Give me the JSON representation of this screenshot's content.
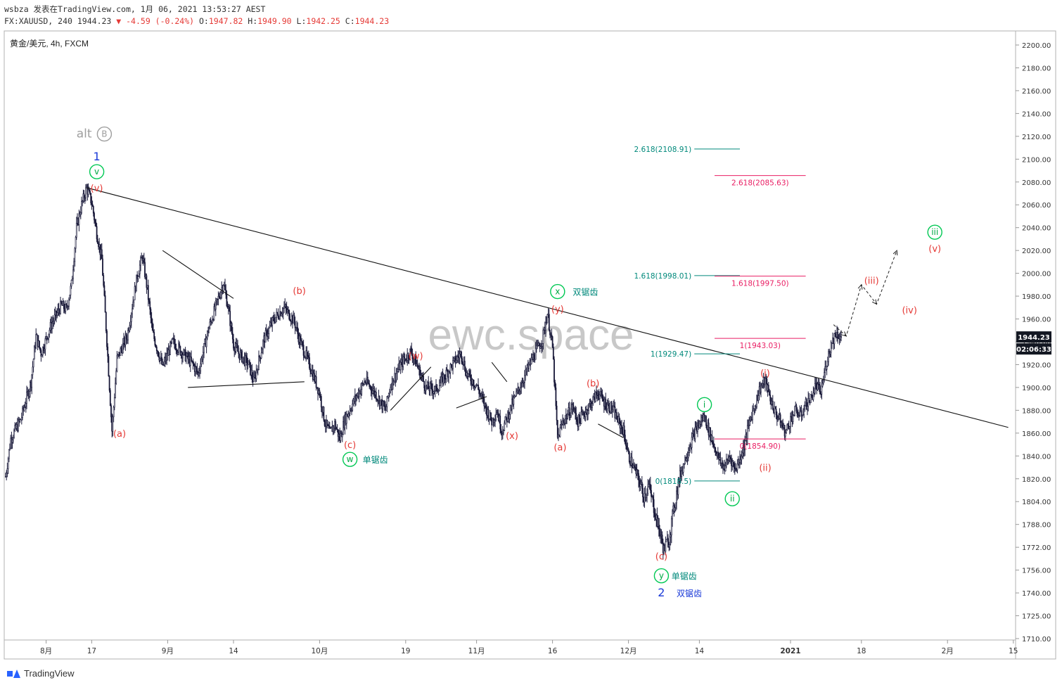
{
  "header": {
    "line1": "wsbza 发表在TradingView.com, 1月 06, 2021 13:53:27 AEST",
    "line2_symbol": "FX:XAUUSD, 240",
    "line2_last": "1944.23",
    "line2_change": "▼ -4.59 (-0.24%)",
    "o_label": "O:",
    "o_value": "1947.82",
    "h_label": "H:",
    "h_value": "1949.90",
    "l_label": "L:",
    "l_value": "1942.25",
    "c_label": "C:",
    "c_value": "1944.23"
  },
  "brand": "TradingView",
  "chart_data": {
    "type": "candlestick",
    "title": "黄金/美元, 4h, FXCM",
    "watermark": "ewc.space",
    "price_label": "1944.23",
    "countdown_label": "02:06:33",
    "y_ticks": [
      2200,
      2180,
      2160,
      2140,
      2120,
      2100,
      2080,
      2060,
      2040,
      2020,
      2000,
      1980,
      1960,
      1940,
      1920,
      1900,
      1880,
      1860,
      1840,
      1820,
      1804,
      1788,
      1772,
      1756,
      1740,
      1725,
      1710
    ],
    "y_tick_labels": [
      "2200.00",
      "2180.00",
      "2160.00",
      "2140.00",
      "2120.00",
      "2100.00",
      "2080.00",
      "2060.00",
      "2040.00",
      "2020.00",
      "2000.00",
      "1980.00",
      "1960.00",
      "1940.00",
      "1920.00",
      "1900.00",
      "1880.00",
      "1860.00",
      "1840.00",
      "1820.00",
      "1804.00",
      "1788.00",
      "1772.00",
      "1756.00",
      "1740.00",
      "1725.00",
      "1710.00"
    ],
    "x_ticks": [
      {
        "label": "8月",
        "day": 8
      },
      {
        "label": "17",
        "day": 17
      },
      {
        "label": "9月",
        "day": 32
      },
      {
        "label": "14",
        "day": 45
      },
      {
        "label": "10月",
        "day": 62
      },
      {
        "label": "19",
        "day": 79
      },
      {
        "label": "11月",
        "day": 93
      },
      {
        "label": "16",
        "day": 108
      },
      {
        "label": "12月",
        "day": 123
      },
      {
        "label": "14",
        "day": 137
      },
      {
        "label": "2021",
        "day": 155
      },
      {
        "label": "18",
        "day": 169
      },
      {
        "label": "2月",
        "day": 186
      },
      {
        "label": "15",
        "day": 199
      }
    ],
    "price_path": [
      [
        0,
        1822
      ],
      [
        1,
        1855
      ],
      [
        3,
        1872
      ],
      [
        5,
        1905
      ],
      [
        6,
        1945
      ],
      [
        7,
        1930
      ],
      [
        9,
        1955
      ],
      [
        11,
        1972
      ],
      [
        12,
        1968
      ],
      [
        13,
        1990
      ],
      [
        14,
        2040
      ],
      [
        15,
        2060
      ],
      [
        16,
        2075
      ],
      [
        17,
        2062
      ],
      [
        18,
        2035
      ],
      [
        19,
        2012
      ],
      [
        20,
        1940
      ],
      [
        21,
        1862
      ],
      [
        22,
        1925
      ],
      [
        24,
        1945
      ],
      [
        26,
        1998
      ],
      [
        27,
        2015
      ],
      [
        28,
        1985
      ],
      [
        29,
        1948
      ],
      [
        31,
        1918
      ],
      [
        33,
        1940
      ],
      [
        35,
        1930
      ],
      [
        37,
        1920
      ],
      [
        38,
        1912
      ],
      [
        40,
        1950
      ],
      [
        42,
        1978
      ],
      [
        43,
        1992
      ],
      [
        44,
        1968
      ],
      [
        45,
        1938
      ],
      [
        46,
        1930
      ],
      [
        48,
        1920
      ],
      [
        49,
        1905
      ],
      [
        51,
        1942
      ],
      [
        53,
        1960
      ],
      [
        55,
        1970
      ],
      [
        57,
        1958
      ],
      [
        58,
        1942
      ],
      [
        60,
        1920
      ],
      [
        62,
        1895
      ],
      [
        63,
        1870
      ],
      [
        64,
        1860
      ],
      [
        65,
        1868
      ],
      [
        66,
        1855
      ],
      [
        67,
        1872
      ],
      [
        69,
        1890
      ],
      [
        71,
        1906
      ],
      [
        73,
        1895
      ],
      [
        75,
        1880
      ],
      [
        76,
        1902
      ],
      [
        78,
        1920
      ],
      [
        80,
        1932
      ],
      [
        81,
        1922
      ],
      [
        83,
        1900
      ],
      [
        85,
        1898
      ],
      [
        87,
        1912
      ],
      [
        89,
        1925
      ],
      [
        90,
        1930
      ],
      [
        91,
        1912
      ],
      [
        93,
        1902
      ],
      [
        95,
        1880
      ],
      [
        96,
        1870
      ],
      [
        97,
        1880
      ],
      [
        98,
        1862
      ],
      [
        100,
        1885
      ],
      [
        102,
        1905
      ],
      [
        104,
        1925
      ],
      [
        106,
        1942
      ],
      [
        107,
        1965
      ],
      [
        108,
        1935
      ],
      [
        109,
        1855
      ],
      [
        110,
        1870
      ],
      [
        112,
        1883
      ],
      [
        113,
        1870
      ],
      [
        115,
        1882
      ],
      [
        117,
        1896
      ],
      [
        118,
        1888
      ],
      [
        120,
        1880
      ],
      [
        121,
        1870
      ],
      [
        122,
        1862
      ],
      [
        123,
        1840
      ],
      [
        124,
        1830
      ],
      [
        125,
        1820
      ],
      [
        126,
        1808
      ],
      [
        127,
        1815
      ],
      [
        128,
        1800
      ],
      [
        129,
        1785
      ],
      [
        130,
        1770
      ],
      [
        131,
        1778
      ],
      [
        132,
        1800
      ],
      [
        133,
        1820
      ],
      [
        134,
        1835
      ],
      [
        135,
        1848
      ],
      [
        136,
        1860
      ],
      [
        137,
        1868
      ],
      [
        138,
        1875
      ],
      [
        139,
        1860
      ],
      [
        140,
        1848
      ],
      [
        141,
        1835
      ],
      [
        142,
        1830
      ],
      [
        143,
        1840
      ],
      [
        144,
        1828
      ],
      [
        145,
        1838
      ],
      [
        146,
        1852
      ],
      [
        147,
        1872
      ],
      [
        148,
        1885
      ],
      [
        149,
        1900
      ],
      [
        150,
        1906
      ],
      [
        151,
        1890
      ],
      [
        152,
        1878
      ],
      [
        153,
        1870
      ],
      [
        154,
        1860
      ],
      [
        155,
        1872
      ],
      [
        156,
        1880
      ],
      [
        157,
        1875
      ],
      [
        158,
        1885
      ],
      [
        159,
        1890
      ],
      [
        160,
        1902
      ],
      [
        161,
        1895
      ],
      [
        162,
        1920
      ],
      [
        163,
        1938
      ],
      [
        164,
        1948
      ],
      [
        165,
        1944
      ]
    ],
    "lines": [
      {
        "name": "main-trendline",
        "from": [
          16,
          2075
        ],
        "to": [
          198,
          1865
        ]
      },
      {
        "name": "triangle-upper",
        "from": [
          31,
          2020
        ],
        "to": [
          45,
          1978
        ]
      },
      {
        "name": "triangle-lower",
        "from": [
          36,
          1900
        ],
        "to": [
          59,
          1905
        ]
      },
      {
        "name": "wedge-line-1",
        "from": [
          76,
          1880
        ],
        "to": [
          84,
          1918
        ]
      },
      {
        "name": "wedge-line-2",
        "from": [
          89,
          1882
        ],
        "to": [
          95,
          1892
        ]
      },
      {
        "name": "wedge-line-3",
        "from": [
          96,
          1922
        ],
        "to": [
          99,
          1905
        ]
      },
      {
        "name": "flag-line",
        "from": [
          117,
          1868
        ],
        "to": [
          122,
          1856
        ]
      }
    ],
    "fib_levels": [
      {
        "label": "2.618(2108.91)",
        "value": 2108.91,
        "x0": 136,
        "x1": 145,
        "color": "#00897b",
        "label_side": "left"
      },
      {
        "label": "1.618(1998.01)",
        "value": 1998.01,
        "x0": 136,
        "x1": 145,
        "color": "#00897b",
        "label_side": "left"
      },
      {
        "label": "1(1929.47)",
        "value": 1929.47,
        "x0": 136,
        "x1": 145,
        "color": "#00897b",
        "label_side": "left"
      },
      {
        "label": "0(1818.5)",
        "value": 1818.5,
        "x0": 136,
        "x1": 145,
        "color": "#00897b",
        "label_side": "left"
      },
      {
        "label": "2.618(2085.63)",
        "value": 2085.63,
        "x0": 140,
        "x1": 158,
        "color": "#e91e63",
        "label_side": "below"
      },
      {
        "label": "1.618(1997.50)",
        "value": 1997.5,
        "x0": 140,
        "x1": 158,
        "color": "#e91e63",
        "label_side": "below"
      },
      {
        "label": "1(1943.03)",
        "value": 1943.03,
        "x0": 140,
        "x1": 158,
        "color": "#e91e63",
        "label_side": "below"
      },
      {
        "label": "0(1854.90)",
        "value": 1854.9,
        "x0": 140,
        "x1": 158,
        "color": "#e91e63",
        "label_side": "below"
      }
    ],
    "projection": [
      [
        163.5,
        1955
      ],
      [
        166,
        1945
      ],
      [
        169,
        1990
      ],
      [
        172,
        1973
      ],
      [
        176,
        2020
      ]
    ],
    "annotations": [
      {
        "text": "alt",
        "day": 15.5,
        "price": 2122,
        "color": "#9e9e9e",
        "size": 17,
        "kind": "text"
      },
      {
        "text": "B",
        "day": 19.5,
        "price": 2122,
        "color": "#9e9e9e",
        "size": 12,
        "kind": "circle"
      },
      {
        "text": "1",
        "day": 18,
        "price": 2102,
        "color": "#1a3ad8",
        "size": 16,
        "kind": "text"
      },
      {
        "text": "v",
        "day": 18,
        "price": 2089,
        "color": "#2e7d32",
        "size": 12,
        "kind": "circle"
      },
      {
        "text": "(v)",
        "day": 18,
        "price": 2075,
        "color": "#e53935",
        "size": 13,
        "kind": "text"
      },
      {
        "text": "(a)",
        "day": 22.5,
        "price": 1860,
        "color": "#e53935",
        "size": 13,
        "kind": "text"
      },
      {
        "text": "(b)",
        "day": 58,
        "price": 1985,
        "color": "#e53935",
        "size": 13,
        "kind": "text"
      },
      {
        "text": "(c)",
        "day": 68,
        "price": 1850,
        "color": "#e53935",
        "size": 13,
        "kind": "text"
      },
      {
        "text": "w",
        "day": 68,
        "price": 1837,
        "color": "#2e7d32",
        "size": 12,
        "kind": "circle"
      },
      {
        "text": "单锯齿",
        "day": 73,
        "price": 1837,
        "color": "#00897b",
        "size": 12,
        "kind": "text"
      },
      {
        "text": "(w)",
        "day": 81,
        "price": 1928,
        "color": "#e53935",
        "size": 13,
        "kind": "text"
      },
      {
        "text": "(x)",
        "day": 100,
        "price": 1858,
        "color": "#e53935",
        "size": 13,
        "kind": "text"
      },
      {
        "text": "x",
        "day": 109,
        "price": 1984,
        "color": "#2e7d32",
        "size": 12,
        "kind": "circle"
      },
      {
        "text": "双锯齿",
        "day": 114.5,
        "price": 1984,
        "color": "#00897b",
        "size": 12,
        "kind": "text"
      },
      {
        "text": "(y)",
        "day": 109,
        "price": 1969,
        "color": "#e53935",
        "size": 13,
        "kind": "text"
      },
      {
        "text": "(a)",
        "day": 109.5,
        "price": 1848,
        "color": "#e53935",
        "size": 13,
        "kind": "text"
      },
      {
        "text": "(b)",
        "day": 116,
        "price": 1904,
        "color": "#e53935",
        "size": 13,
        "kind": "text"
      },
      {
        "text": "(c)",
        "day": 129.5,
        "price": 1766,
        "color": "#e53935",
        "size": 13,
        "kind": "text"
      },
      {
        "text": "y",
        "day": 129.5,
        "price": 1752,
        "color": "#2e7d32",
        "size": 12,
        "kind": "circle"
      },
      {
        "text": "单锯齿",
        "day": 134,
        "price": 1752,
        "color": "#00897b",
        "size": 12,
        "kind": "text"
      },
      {
        "text": "2",
        "day": 129.5,
        "price": 1740,
        "color": "#1a3ad8",
        "size": 16,
        "kind": "text"
      },
      {
        "text": "双锯齿",
        "day": 135,
        "price": 1740,
        "color": "#1a3ad8",
        "size": 12,
        "kind": "text"
      },
      {
        "text": "i",
        "day": 138,
        "price": 1885,
        "color": "#2e7d32",
        "size": 12,
        "kind": "circle"
      },
      {
        "text": "ii",
        "day": 143.5,
        "price": 1806,
        "color": "#2e7d32",
        "size": 12,
        "kind": "circle"
      },
      {
        "text": "(i)",
        "day": 150,
        "price": 1913,
        "color": "#e53935",
        "size": 13,
        "kind": "text"
      },
      {
        "text": "(ii)",
        "day": 150,
        "price": 1830,
        "color": "#e53935",
        "size": 13,
        "kind": "text"
      },
      {
        "text": "(iii)",
        "day": 171,
        "price": 1994,
        "color": "#e53935",
        "size": 13,
        "kind": "text"
      },
      {
        "text": "(iv)",
        "day": 178.5,
        "price": 1968,
        "color": "#e53935",
        "size": 13,
        "kind": "text"
      },
      {
        "text": "iii",
        "day": 183.5,
        "price": 2036,
        "color": "#2e7d32",
        "size": 12,
        "kind": "circle"
      },
      {
        "text": "(v)",
        "day": 183.5,
        "price": 2022,
        "color": "#e53935",
        "size": 13,
        "kind": "text"
      }
    ]
  }
}
